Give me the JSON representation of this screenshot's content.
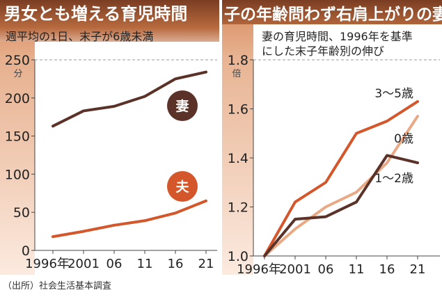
{
  "colors": {
    "dark": "#5b3228",
    "orange": "#d4572b",
    "light": "#e9a985"
  },
  "source": "（出所）社会生活基本調査",
  "chart_data": [
    {
      "type": "line",
      "title": "男女とも増える育児時間",
      "subtitle": "週平均の1日、末子が6歳未満",
      "ylabel": "分",
      "ylim": [
        0,
        250
      ],
      "yticks": [
        "0",
        "50",
        "100",
        "150",
        "200",
        "250"
      ],
      "yticks_values": [
        0,
        50,
        100,
        150,
        200,
        250
      ],
      "categories": [
        "1996年",
        "2001",
        "06",
        "11",
        "16",
        "21"
      ],
      "grid": "dashed-top",
      "series": [
        {
          "name": "妻",
          "color": "#5b3228",
          "values": [
            163,
            183,
            189,
            202,
            225,
            234
          ]
        },
        {
          "name": "夫",
          "color": "#d4572b",
          "values": [
            18,
            25,
            33,
            39,
            49,
            65
          ]
        }
      ]
    },
    {
      "type": "line",
      "title": "子の年齢問わず右肩上がりの妻",
      "subtitle": [
        "妻の育児時間、1996年を基準",
        "にした末子年齢別の伸び"
      ],
      "ylabel": "倍",
      "ylim": [
        1.0,
        1.8
      ],
      "yticks": [
        "1.0",
        "1.2",
        "1.4",
        "1.6",
        "1.8"
      ],
      "yticks_values": [
        1.0,
        1.2,
        1.4,
        1.6,
        1.8
      ],
      "categories": [
        "1996年",
        "2001",
        "06",
        "11",
        "16",
        "21"
      ],
      "series": [
        {
          "name": "3～5歳",
          "color": "#d4572b",
          "values": [
            1.0,
            1.22,
            1.3,
            1.5,
            1.55,
            1.63
          ]
        },
        {
          "name": "0歳",
          "color": "#e9a985",
          "values": [
            1.0,
            1.11,
            1.2,
            1.26,
            1.38,
            1.57
          ]
        },
        {
          "name": "1～2歳",
          "color": "#5b3228",
          "values": [
            1.0,
            1.15,
            1.16,
            1.22,
            1.41,
            1.38
          ]
        }
      ]
    }
  ]
}
